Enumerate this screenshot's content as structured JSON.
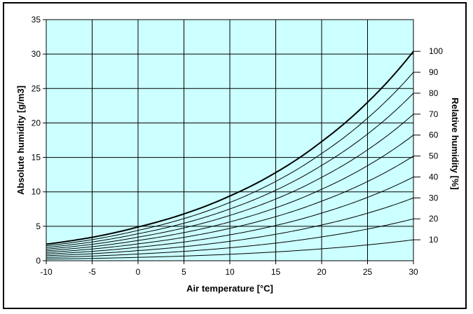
{
  "chart_data": {
    "type": "line",
    "title": "",
    "xlabel": "Air temperature [°C]",
    "ylabel": "Absolute humidity [g/m3]",
    "y2label": "Relative humidity [%]",
    "xlim": [
      -10,
      30
    ],
    "ylim": [
      0,
      35
    ],
    "xticks": [
      -10,
      -5,
      0,
      5,
      10,
      15,
      20,
      25,
      30
    ],
    "yticks": [
      0,
      5,
      10,
      15,
      20,
      25,
      30,
      35
    ],
    "grid": true,
    "plot_background": "#ccffff",
    "line_color": "#000000",
    "x": [
      -10,
      -5,
      0,
      5,
      10,
      15,
      20,
      25,
      30
    ],
    "series": [
      {
        "name": "100",
        "values": [
          2.4,
          3.4,
          4.9,
          6.8,
          9.4,
          12.8,
          17.3,
          23.0,
          30.4
        ]
      },
      {
        "name": "90",
        "values": [
          2.16,
          3.06,
          4.41,
          6.12,
          8.46,
          11.52,
          15.57,
          20.7,
          27.36
        ]
      },
      {
        "name": "80",
        "values": [
          1.92,
          2.72,
          3.92,
          5.44,
          7.52,
          10.24,
          13.84,
          18.4,
          24.32
        ]
      },
      {
        "name": "70",
        "values": [
          1.68,
          2.38,
          3.43,
          4.76,
          6.58,
          8.96,
          12.11,
          16.1,
          21.28
        ]
      },
      {
        "name": "60",
        "values": [
          1.44,
          2.04,
          2.94,
          4.08,
          5.64,
          7.68,
          10.38,
          13.8,
          18.24
        ]
      },
      {
        "name": "50",
        "values": [
          1.2,
          1.7,
          2.45,
          3.4,
          4.7,
          6.4,
          8.65,
          11.5,
          15.2
        ]
      },
      {
        "name": "40",
        "values": [
          0.96,
          1.36,
          1.96,
          2.72,
          3.76,
          5.12,
          6.92,
          9.2,
          12.16
        ]
      },
      {
        "name": "30",
        "values": [
          0.72,
          1.02,
          1.47,
          2.04,
          2.82,
          3.84,
          5.19,
          6.9,
          9.12
        ]
      },
      {
        "name": "20",
        "values": [
          0.48,
          0.68,
          0.98,
          1.36,
          1.88,
          2.56,
          3.46,
          4.6,
          6.08
        ]
      },
      {
        "name": "10",
        "values": [
          0.24,
          0.34,
          0.49,
          0.68,
          0.94,
          1.28,
          1.73,
          2.3,
          3.04
        ]
      }
    ]
  }
}
